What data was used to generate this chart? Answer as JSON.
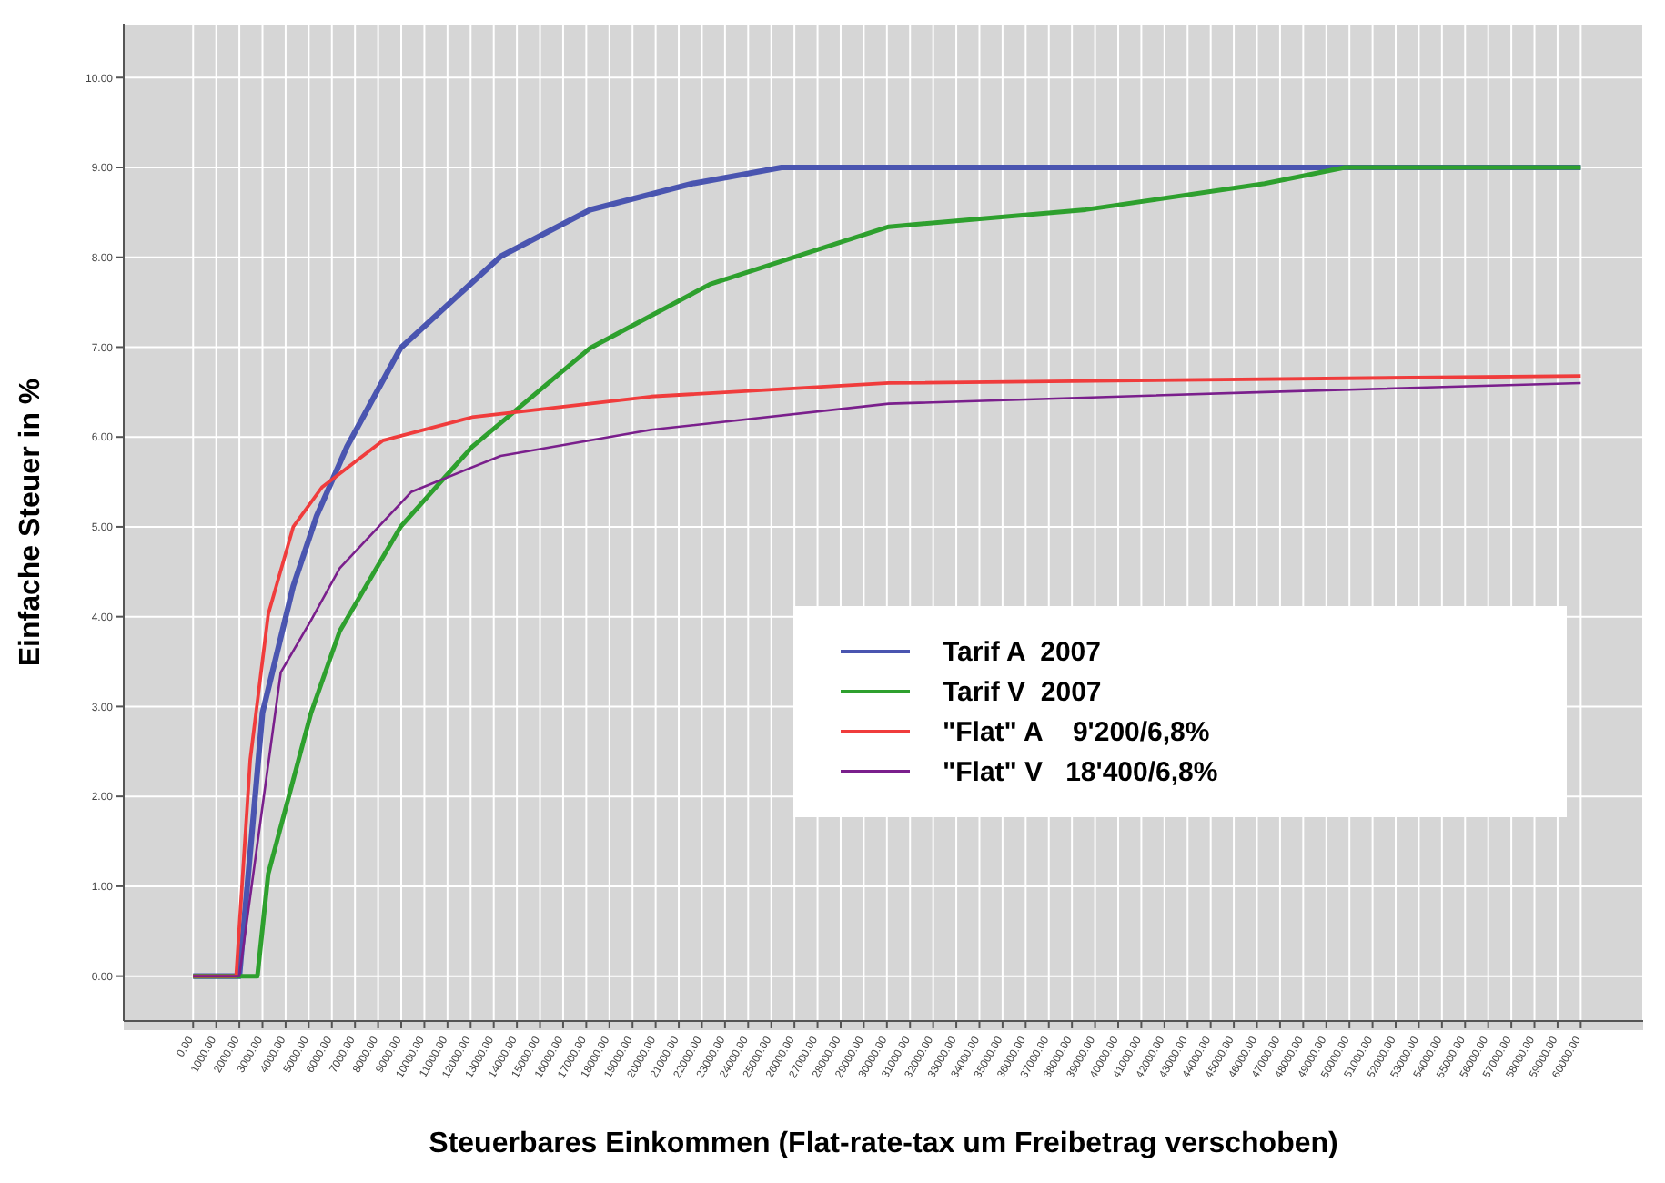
{
  "chart_data": {
    "type": "line",
    "xlabel": "Steuerbares Einkommen (Flat-rate-tax um Freibetrag verschoben)",
    "ylabel": "Einfache Steuer in %",
    "xlim": [
      -3000,
      62700
    ],
    "ylim": [
      -0.5,
      10.6
    ],
    "xticks": [
      {
        "value": 0,
        "label": "0.00"
      },
      {
        "value": 1000,
        "label": "1000.00"
      },
      {
        "value": 2000,
        "label": "2000.00"
      },
      {
        "value": 3000,
        "label": "3000.00"
      },
      {
        "value": 4000,
        "label": "4000.00"
      },
      {
        "value": 5000,
        "label": "5000.00"
      },
      {
        "value": 6000,
        "label": "6000.00"
      },
      {
        "value": 7000,
        "label": "7000.00"
      },
      {
        "value": 8000,
        "label": "8000.00"
      },
      {
        "value": 9000,
        "label": "9000.00"
      },
      {
        "value": 10000,
        "label": "10000.00"
      },
      {
        "value": 11000,
        "label": "11000.00"
      },
      {
        "value": 12000,
        "label": "12000.00"
      },
      {
        "value": 13000,
        "label": "13000.00"
      },
      {
        "value": 14000,
        "label": "14000.00"
      },
      {
        "value": 15000,
        "label": "15000.00"
      },
      {
        "value": 16000,
        "label": "16000.00"
      },
      {
        "value": 17000,
        "label": "17000.00"
      },
      {
        "value": 18000,
        "label": "18000.00"
      },
      {
        "value": 19000,
        "label": "19000.00"
      },
      {
        "value": 20000,
        "label": "20000.00"
      },
      {
        "value": 21000,
        "label": "21000.00"
      },
      {
        "value": 22000,
        "label": "22000.00"
      },
      {
        "value": 23000,
        "label": "23000.00"
      },
      {
        "value": 24000,
        "label": "24000.00"
      },
      {
        "value": 25000,
        "label": "25000.00"
      },
      {
        "value": 26000,
        "label": "26000.00"
      },
      {
        "value": 27000,
        "label": "27000.00"
      },
      {
        "value": 28000,
        "label": "28000.00"
      },
      {
        "value": 29000,
        "label": "29000.00"
      },
      {
        "value": 30000,
        "label": "30000.00"
      },
      {
        "value": 31000,
        "label": "31000.00"
      },
      {
        "value": 32000,
        "label": "32000.00"
      },
      {
        "value": 33000,
        "label": "33000.00"
      },
      {
        "value": 34000,
        "label": "34000.00"
      },
      {
        "value": 35000,
        "label": "35000.00"
      },
      {
        "value": 36000,
        "label": "36000.00"
      },
      {
        "value": 37000,
        "label": "37000.00"
      },
      {
        "value": 38000,
        "label": "38000.00"
      },
      {
        "value": 39000,
        "label": "39000.00"
      },
      {
        "value": 40000,
        "label": "40000.00"
      },
      {
        "value": 41000,
        "label": "41000.00"
      },
      {
        "value": 42000,
        "label": "42000.00"
      },
      {
        "value": 43000,
        "label": "43000.00"
      },
      {
        "value": 44000,
        "label": "44000.00"
      },
      {
        "value": 45000,
        "label": "45000.00"
      },
      {
        "value": 46000,
        "label": "46000.00"
      },
      {
        "value": 47000,
        "label": "47000.00"
      },
      {
        "value": 48000,
        "label": "48000.00"
      },
      {
        "value": 49000,
        "label": "49000.00"
      },
      {
        "value": 50000,
        "label": "50000.00"
      },
      {
        "value": 51000,
        "label": "51000.00"
      },
      {
        "value": 52000,
        "label": "52000.00"
      },
      {
        "value": 53000,
        "label": "53000.00"
      },
      {
        "value": 54000,
        "label": "54000.00"
      },
      {
        "value": 55000,
        "label": "55000.00"
      },
      {
        "value": 56000,
        "label": "56000.00"
      },
      {
        "value": 57000,
        "label": "57000.00"
      },
      {
        "value": 58000,
        "label": "58000.00"
      },
      {
        "value": 59000,
        "label": "59000.00"
      },
      {
        "value": 60000,
        "label": "60000.00"
      }
    ],
    "yticks": [
      {
        "value": 0,
        "label": "0.00"
      },
      {
        "value": 1,
        "label": "1.00"
      },
      {
        "value": 2,
        "label": "2.00"
      },
      {
        "value": 3,
        "label": "3.00"
      },
      {
        "value": 4,
        "label": "4.00"
      },
      {
        "value": 5,
        "label": "5.00"
      },
      {
        "value": 6,
        "label": "6.00"
      },
      {
        "value": 7,
        "label": "7.00"
      },
      {
        "value": 8,
        "label": "8.00"
      },
      {
        "value": 9,
        "label": "9.00"
      },
      {
        "value": 10,
        "label": "10.00"
      }
    ],
    "grid": true,
    "legend": "bottom right",
    "marker": "none",
    "series": [
      {
        "name": "Tarif A  2007",
        "color": "#4a55b0",
        "x": [
          0,
          2000,
          3000,
          4330,
          5340,
          6650,
          8970,
          13300,
          17170,
          21580,
          25440,
          60000
        ],
        "values": [
          0,
          0,
          2.93,
          4.34,
          5.12,
          5.89,
          6.99,
          8.01,
          8.53,
          8.82,
          9.0,
          9.0
        ]
      },
      {
        "name": "Tarif V  2007",
        "color": "#2ea02e",
        "x": [
          0,
          2780,
          3250,
          5100,
          6340,
          8970,
          12060,
          17170,
          22350,
          30080,
          38590,
          46330,
          49800,
          60000
        ],
        "values": [
          0,
          0,
          1.14,
          2.93,
          3.84,
          5.0,
          5.89,
          6.99,
          7.7,
          8.34,
          8.53,
          8.82,
          9.0,
          9.0
        ]
      },
      {
        "name": "\"Flat\" A    9'200/6,8%",
        "color": "#f03c3c",
        "x": [
          0,
          1860,
          2470,
          3250,
          4330,
          5570,
          8200,
          12060,
          19800,
          30080,
          60000
        ],
        "values": [
          0,
          0,
          2.41,
          4.03,
          5.0,
          5.44,
          5.96,
          6.22,
          6.45,
          6.6,
          6.68
        ]
      },
      {
        "name": "\"Flat\" V   18'400/6,8%",
        "color": "#7a1f8c",
        "x": [
          0,
          2000,
          3790,
          5100,
          6340,
          9440,
          13300,
          19800,
          30080,
          46330,
          60000
        ],
        "values": [
          0,
          0,
          3.38,
          3.96,
          4.54,
          5.39,
          5.79,
          6.08,
          6.37,
          6.5,
          6.6
        ]
      }
    ]
  }
}
